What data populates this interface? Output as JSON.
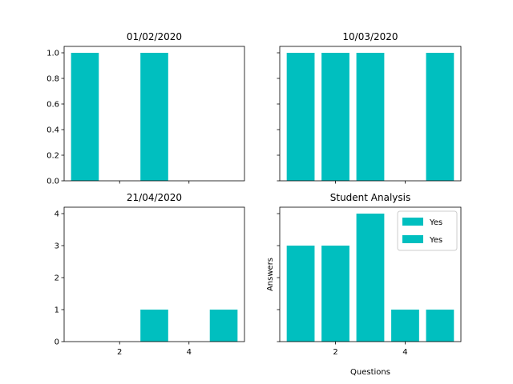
{
  "chart_data": [
    {
      "type": "bar",
      "title": "01/02/2020",
      "xlabel": "",
      "ylabel": "",
      "x": [
        1,
        2,
        3,
        4,
        5
      ],
      "values": [
        1,
        0,
        1,
        0,
        0
      ],
      "xlim": [
        0.4,
        5.6
      ],
      "ylim": [
        0,
        1.05
      ],
      "yticks": [
        0.0,
        0.2,
        0.4,
        0.6,
        0.8,
        1.0
      ],
      "ytick_labels": [
        "0.0",
        "0.2",
        "0.4",
        "0.6",
        "0.8",
        "1.0"
      ],
      "xticks": [
        2,
        4
      ],
      "xtick_labels": [],
      "color": "#00bfbf"
    },
    {
      "type": "bar",
      "title": "10/03/2020",
      "xlabel": "",
      "ylabel": "",
      "x": [
        1,
        2,
        3,
        4,
        5
      ],
      "values": [
        1,
        1,
        1,
        0,
        1
      ],
      "xlim": [
        0.4,
        5.6
      ],
      "ylim": [
        0,
        1.05
      ],
      "yticks": [
        0.0,
        0.2,
        0.4,
        0.6,
        0.8,
        1.0
      ],
      "ytick_labels": [],
      "xticks": [
        2,
        4
      ],
      "xtick_labels": [],
      "color": "#00bfbf"
    },
    {
      "type": "bar",
      "title": "21/04/2020",
      "xlabel": "",
      "ylabel": "",
      "x": [
        1,
        2,
        3,
        4,
        5
      ],
      "values": [
        0,
        0,
        1,
        0,
        1
      ],
      "xlim": [
        0.4,
        5.6
      ],
      "ylim": [
        0,
        4.2
      ],
      "yticks": [
        0,
        1,
        2,
        3,
        4
      ],
      "ytick_labels": [
        "0",
        "1",
        "2",
        "3",
        "4"
      ],
      "xticks": [
        2,
        4
      ],
      "xtick_labels": [
        "2",
        "4"
      ],
      "color": "#00bfbf"
    },
    {
      "type": "bar",
      "title": "Student Analysis",
      "xlabel": "Questions",
      "ylabel": "Answers",
      "x": [
        1,
        2,
        3,
        4,
        5
      ],
      "values": [
        3,
        3,
        4,
        1,
        1
      ],
      "xlim": [
        0.4,
        5.6
      ],
      "ylim": [
        0,
        4.2
      ],
      "yticks": [
        0,
        1,
        2,
        3,
        4
      ],
      "ytick_labels": [],
      "xticks": [
        2,
        4
      ],
      "xtick_labels": [
        "2",
        "4"
      ],
      "color": "#00bfbf",
      "legend": {
        "placement": "upper-right",
        "entries": [
          {
            "label": "Yes",
            "color": "#00bfbf"
          },
          {
            "label": "Yes",
            "color": "#00bfbf"
          }
        ]
      }
    }
  ]
}
